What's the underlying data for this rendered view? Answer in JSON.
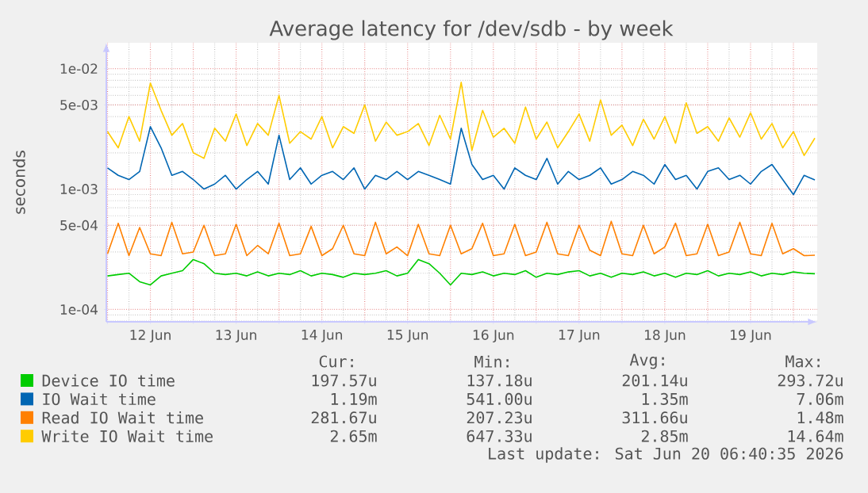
{
  "chart_data": {
    "type": "line",
    "title": "Average latency for /dev/sdb - by week",
    "ylabel": "seconds",
    "x": [
      "2026-06-12T00:00",
      "2026-06-12T03:00",
      "2026-06-12T06:00",
      "2026-06-12T09:00",
      "2026-06-12T12:00",
      "2026-06-12T15:00",
      "2026-06-12T18:00",
      "2026-06-12T21:00",
      "2026-06-13T00:00",
      "2026-06-13T03:00",
      "2026-06-13T06:00",
      "2026-06-13T09:00",
      "2026-06-13T12:00",
      "2026-06-13T15:00",
      "2026-06-13T18:00",
      "2026-06-13T21:00",
      "2026-06-14T00:00",
      "2026-06-14T03:00",
      "2026-06-14T06:00",
      "2026-06-14T09:00",
      "2026-06-14T12:00",
      "2026-06-14T15:00",
      "2026-06-14T18:00",
      "2026-06-14T21:00",
      "2026-06-15T00:00",
      "2026-06-15T03:00",
      "2026-06-15T06:00",
      "2026-06-15T09:00",
      "2026-06-15T12:00",
      "2026-06-15T15:00",
      "2026-06-15T18:00",
      "2026-06-15T21:00",
      "2026-06-16T00:00",
      "2026-06-16T03:00",
      "2026-06-16T06:00",
      "2026-06-16T09:00",
      "2026-06-16T12:00",
      "2026-06-16T15:00",
      "2026-06-16T18:00",
      "2026-06-16T21:00",
      "2026-06-17T00:00",
      "2026-06-17T03:00",
      "2026-06-17T06:00",
      "2026-06-17T09:00",
      "2026-06-17T12:00",
      "2026-06-17T15:00",
      "2026-06-17T18:00",
      "2026-06-17T21:00",
      "2026-06-18T00:00",
      "2026-06-18T03:00",
      "2026-06-18T06:00",
      "2026-06-18T09:00",
      "2026-06-18T12:00",
      "2026-06-18T15:00",
      "2026-06-18T18:00",
      "2026-06-18T21:00",
      "2026-06-19T00:00",
      "2026-06-19T03:00",
      "2026-06-19T06:00",
      "2026-06-19T09:00",
      "2026-06-19T12:00",
      "2026-06-19T15:00",
      "2026-06-19T18:00",
      "2026-06-19T21:00",
      "2026-06-20T00:00",
      "2026-06-20T03:00",
      "2026-06-20T06:00"
    ],
    "series": [
      {
        "name": "Device IO time",
        "color": "#00cc00",
        "values": [
          0.00019,
          0.000195,
          0.0002,
          0.00017,
          0.00016,
          0.00019,
          0.0002,
          0.00021,
          0.00026,
          0.00024,
          0.0002,
          0.000195,
          0.0002,
          0.00019,
          0.000205,
          0.00019,
          0.0002,
          0.000195,
          0.00021,
          0.00019,
          0.0002,
          0.000195,
          0.000185,
          0.0002,
          0.000195,
          0.0002,
          0.00021,
          0.00019,
          0.0002,
          0.00026,
          0.00024,
          0.0002,
          0.00016,
          0.0002,
          0.000195,
          0.000205,
          0.00019,
          0.0002,
          0.000195,
          0.00021,
          0.000185,
          0.0002,
          0.000195,
          0.000205,
          0.00021,
          0.00019,
          0.0002,
          0.000185,
          0.0002,
          0.000195,
          0.000205,
          0.00019,
          0.0002,
          0.000185,
          0.0002,
          0.000195,
          0.00021,
          0.00019,
          0.0002,
          0.000195,
          0.000205,
          0.00019,
          0.0002,
          0.000195,
          0.000205,
          0.0002,
          0.000198
        ]
      },
      {
        "name": "IO Wait time",
        "color": "#0066b3",
        "values": [
          0.0015,
          0.0013,
          0.0012,
          0.0014,
          0.0033,
          0.0022,
          0.0013,
          0.0014,
          0.0012,
          0.001,
          0.0011,
          0.0013,
          0.001,
          0.0012,
          0.0014,
          0.0011,
          0.0028,
          0.0012,
          0.0015,
          0.0011,
          0.0013,
          0.0014,
          0.0012,
          0.0015,
          0.001,
          0.0013,
          0.0012,
          0.0014,
          0.0012,
          0.0014,
          0.0013,
          0.0012,
          0.0011,
          0.0032,
          0.0016,
          0.0012,
          0.0013,
          0.001,
          0.0015,
          0.0013,
          0.0012,
          0.0018,
          0.0011,
          0.0014,
          0.0012,
          0.0013,
          0.0015,
          0.0011,
          0.0012,
          0.0014,
          0.0013,
          0.0011,
          0.0016,
          0.0012,
          0.0013,
          0.001,
          0.0014,
          0.0015,
          0.0012,
          0.0013,
          0.0011,
          0.0014,
          0.0016,
          0.0012,
          0.0009,
          0.0013,
          0.00119
        ]
      },
      {
        "name": "Read IO Wait time",
        "color": "#ff8000",
        "values": [
          0.00029,
          0.00052,
          0.00028,
          0.00048,
          0.00029,
          0.00028,
          0.00053,
          0.00029,
          0.0003,
          0.0005,
          0.00028,
          0.00029,
          0.00051,
          0.00028,
          0.00034,
          0.00029,
          0.00052,
          0.00028,
          0.00029,
          0.00049,
          0.00028,
          0.00032,
          0.0005,
          0.00029,
          0.00028,
          0.00053,
          0.00029,
          0.00033,
          0.00028,
          0.00051,
          0.00029,
          0.00028,
          0.0005,
          0.00029,
          0.00032,
          0.00052,
          0.00028,
          0.00029,
          0.00051,
          0.00028,
          0.0003,
          0.00053,
          0.00029,
          0.00028,
          0.0005,
          0.00031,
          0.00028,
          0.00054,
          0.00029,
          0.00028,
          0.0005,
          0.00029,
          0.00033,
          0.00052,
          0.00028,
          0.00029,
          0.00051,
          0.00028,
          0.0003,
          0.00053,
          0.00029,
          0.00028,
          0.00052,
          0.00029,
          0.00032,
          0.00028,
          0.000282
        ]
      },
      {
        "name": "Write IO Wait time",
        "color": "#ffcc00",
        "values": [
          0.003,
          0.0022,
          0.004,
          0.0025,
          0.0076,
          0.0045,
          0.0028,
          0.0035,
          0.002,
          0.0018,
          0.0032,
          0.0025,
          0.0042,
          0.0023,
          0.0035,
          0.0028,
          0.006,
          0.0024,
          0.003,
          0.0026,
          0.004,
          0.0022,
          0.0033,
          0.0029,
          0.005,
          0.0025,
          0.0036,
          0.0028,
          0.003,
          0.0035,
          0.0023,
          0.0041,
          0.0026,
          0.0077,
          0.0021,
          0.0045,
          0.0027,
          0.0032,
          0.0024,
          0.0048,
          0.0026,
          0.0036,
          0.0022,
          0.003,
          0.0042,
          0.0025,
          0.0055,
          0.0028,
          0.0034,
          0.0023,
          0.0038,
          0.0026,
          0.004,
          0.0024,
          0.0052,
          0.0029,
          0.0033,
          0.0025,
          0.0039,
          0.0027,
          0.0043,
          0.0026,
          0.0035,
          0.0022,
          0.003,
          0.0019,
          0.00265
        ]
      }
    ],
    "xlim": [
      "2026-06-11T23:40",
      "2026-06-20T06:40"
    ],
    "xticks": [
      {
        "value": "2026-06-12T00:00",
        "label": null
      },
      {
        "value": "2026-06-12T12:00",
        "label": "12 Jun"
      },
      {
        "value": "2026-06-13T00:00",
        "label": null
      },
      {
        "value": "2026-06-13T12:00",
        "label": "13 Jun"
      },
      {
        "value": "2026-06-14T00:00",
        "label": null
      },
      {
        "value": "2026-06-14T12:00",
        "label": "14 Jun"
      },
      {
        "value": "2026-06-15T00:00",
        "label": null
      },
      {
        "value": "2026-06-15T12:00",
        "label": "15 Jun"
      },
      {
        "value": "2026-06-16T00:00",
        "label": null
      },
      {
        "value": "2026-06-16T12:00",
        "label": "16 Jun"
      },
      {
        "value": "2026-06-17T00:00",
        "label": null
      },
      {
        "value": "2026-06-17T12:00",
        "label": "17 Jun"
      },
      {
        "value": "2026-06-18T00:00",
        "label": null
      },
      {
        "value": "2026-06-18T12:00",
        "label": "18 Jun"
      },
      {
        "value": "2026-06-19T00:00",
        "label": null
      },
      {
        "value": "2026-06-19T12:00",
        "label": "19 Jun"
      },
      {
        "value": "2026-06-20T00:00",
        "label": null
      }
    ],
    "ylim": [
      7.9e-05,
      0.0164
    ],
    "yticks": [
      {
        "value": 0.0001,
        "label": "1e-04"
      },
      {
        "value": 0.0005,
        "label": "5e-04"
      },
      {
        "value": 0.001,
        "label": "1e-03"
      },
      {
        "value": 0.005,
        "label": "5e-03"
      },
      {
        "value": 0.01,
        "label": "1e-02"
      }
    ],
    "log": "y",
    "grid": true,
    "legend": "bottom",
    "annotations": [
      "Cur:",
      "Min:",
      "Avg:",
      "Max:",
      "197.57u",
      "137.18u",
      "201.14u",
      "293.72u",
      "1.19m",
      "541.00u",
      "1.35m",
      "7.06m",
      "281.67u",
      "207.23u",
      "311.66u",
      "1.48m",
      "2.65m",
      "647.33u",
      "2.85m",
      "14.64m",
      "Last update: Sat Jun 20 06:40:35 2026"
    ]
  }
}
